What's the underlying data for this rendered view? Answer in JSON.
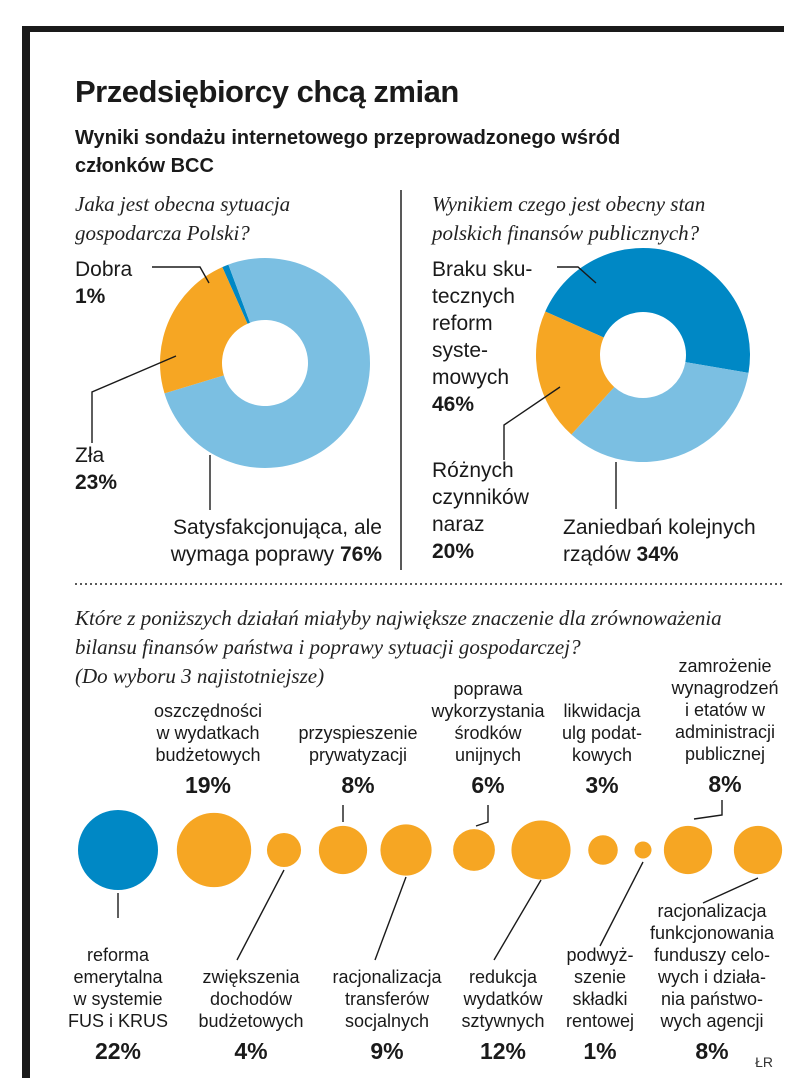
{
  "title": "Przedsiębiorcy chcą zmian",
  "subtitle": "Wyniki sondażu internetowego przeprowadzonego wśród członków BCC",
  "source": "ŁR",
  "colors": {
    "dark_blue": "#0088c5",
    "light_blue": "#7bbfe2",
    "orange": "#f6a623",
    "line": "#1a1a1a"
  },
  "chart_data": [
    {
      "type": "pie",
      "title": "Jaka jest obecna sytuacja gospodarcza Polski?",
      "title_lines": [
        "Jaka jest obecna sytuacja",
        "gospodarcza Polski?"
      ],
      "series": [
        {
          "name": "Dobra",
          "value": 1,
          "color": "#0088c5",
          "label_lines": [
            "Dobra"
          ],
          "pct_label": "1%"
        },
        {
          "name": "Satysfakcjonująca, ale wymaga poprawy",
          "value": 76,
          "color": "#7bbfe2",
          "label_lines": [
            "Satysfakcjonująca, ale",
            "wymaga poprawy"
          ],
          "pct_label": "76%"
        },
        {
          "name": "Zła",
          "value": 23,
          "color": "#f6a623",
          "label_lines": [
            "Zła"
          ],
          "pct_label": "23%"
        }
      ]
    },
    {
      "type": "pie",
      "title": "Wynikiem czego jest obecny stan polskich finansów publicznych?",
      "title_lines": [
        "Wynikiem czego jest obecny stan",
        "polskich finansów publicznych?"
      ],
      "series": [
        {
          "name": "Braku skutecznych reform systemowych",
          "value": 46,
          "color": "#0088c5",
          "label_lines": [
            "Braku sku-",
            "tecznych",
            "reform",
            "syste-",
            "mowych"
          ],
          "pct_label": "46%"
        },
        {
          "name": "Zaniedbań kolejnych rządów",
          "value": 34,
          "color": "#7bbfe2",
          "label_lines": [
            "Zaniedbań kolejnych",
            "rządów"
          ],
          "pct_label": "34%"
        },
        {
          "name": "Różnych czynników naraz",
          "value": 20,
          "color": "#f6a623",
          "label_lines": [
            "Różnych",
            "czynników",
            "naraz"
          ],
          "pct_label": "20%"
        }
      ]
    },
    {
      "type": "scatter",
      "subtype": "bubble",
      "title": "Które z poniższych działań miałyby największe znaczenie dla zrównoważenia bilansu finansów państwa i poprawy sytuacji gospodarczej? (Do wyboru 3 najistotniejsze)",
      "title_lines": [
        "Które z poniższych działań miałyby największe znaczenie dla zrównoważenia",
        "bilansu finansów państwa i poprawy sytuacji gospodarczej?",
        "(Do wyboru 3 najistotniejsze)"
      ],
      "series": [
        {
          "name": "reforma emerytalna w systemie FUS i KRUS",
          "value": 22,
          "pct_label": "22%",
          "color": "#0088c5",
          "label_lines": [
            "reforma",
            "emerytalna",
            "w systemie",
            "FUS i KRUS"
          ],
          "position": "below"
        },
        {
          "name": "oszczędności w wydatkach budżetowych",
          "value": 19,
          "pct_label": "19%",
          "color": "#f6a623",
          "label_lines": [
            "oszczędności",
            "w wydatkach",
            "budżetowych"
          ],
          "position": "above"
        },
        {
          "name": "zwiększenia dochodów budżetowych",
          "value": 4,
          "pct_label": "4%",
          "color": "#f6a623",
          "label_lines": [
            "zwiększenia",
            "dochodów",
            "budżetowych"
          ],
          "position": "below"
        },
        {
          "name": "przyspieszenie prywatyzacji",
          "value": 8,
          "pct_label": "8%",
          "color": "#f6a623",
          "label_lines": [
            "przyspieszenie",
            "prywatyzacji"
          ],
          "position": "above"
        },
        {
          "name": "racjonalizacja transferów socjalnych",
          "value": 9,
          "pct_label": "9%",
          "color": "#f6a623",
          "label_lines": [
            "racjonalizacja",
            "transferów",
            "socjalnych"
          ],
          "position": "below"
        },
        {
          "name": "poprawa wykorzystania środków unijnych",
          "value": 6,
          "pct_label": "6%",
          "color": "#f6a623",
          "label_lines": [
            "poprawa",
            "wykorzystania",
            "środków",
            "unijnych"
          ],
          "position": "above"
        },
        {
          "name": "redukcja wydatków sztywnych",
          "value": 12,
          "pct_label": "12%",
          "color": "#f6a623",
          "label_lines": [
            "redukcja",
            "wydatków",
            "sztywnych"
          ],
          "position": "below"
        },
        {
          "name": "likwidacja ulg podatkowych",
          "value": 3,
          "pct_label": "3%",
          "color": "#f6a623",
          "label_lines": [
            "likwidacja",
            "ulg podat-",
            "kowych"
          ],
          "position": "above"
        },
        {
          "name": "podwyższenie składki rentowej",
          "value": 1,
          "pct_label": "1%",
          "color": "#f6a623",
          "label_lines": [
            "podwyż-",
            "szenie",
            "składki",
            "rentowej"
          ],
          "position": "below"
        },
        {
          "name": "zamrożenie wynagrodzeń i etatów w administracji publicznej",
          "value": 8,
          "pct_label": "8%",
          "color": "#f6a623",
          "label_lines": [
            "zamrożenie",
            "wynagrodzeń",
            "i etatów w",
            "administracji",
            "publicznej"
          ],
          "position": "above"
        },
        {
          "name": "racjonalizacja funkcjonowania funduszy celowych i działania państwowych agencji",
          "value": 8,
          "pct_label": "8%",
          "color": "#f6a623",
          "label_lines": [
            "racjonalizacja",
            "funkcjonowania",
            "funduszy celo-",
            "wych i działa-",
            "nia państwo-",
            "wych agencji"
          ],
          "position": "below"
        }
      ]
    }
  ]
}
